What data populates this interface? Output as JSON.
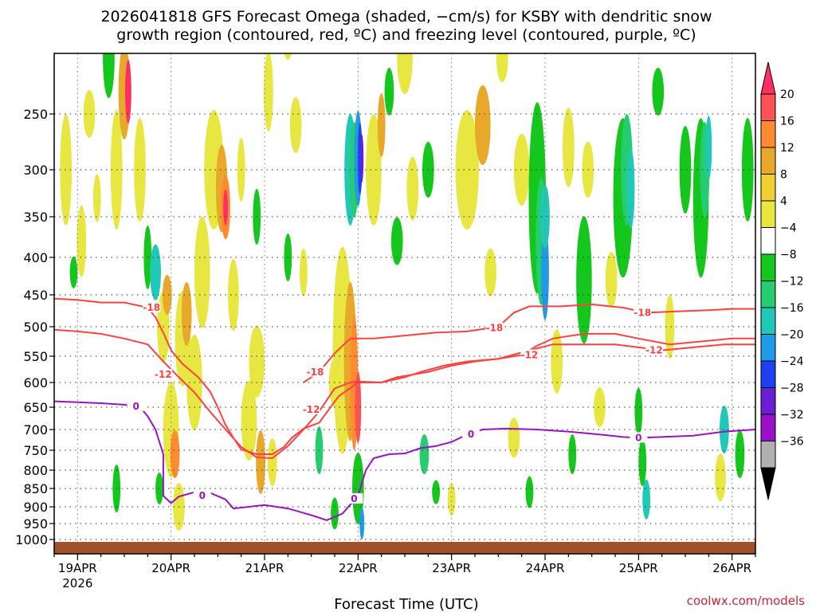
{
  "chart_data": {
    "type": "heatmap",
    "title_lines": [
      "2026041818 GFS Forecast Omega (shaded, −cm/s) for KSBY with dendritic snow",
      "growth region (contoured, red, ºC) and freezing level (contoured, purple, ºC)"
    ],
    "xlabel": "Forecast Time (UTC)",
    "credit": "coolwx.com/models",
    "x_ticks": [
      {
        "label": "19APR",
        "sub": "2026",
        "t": 0
      },
      {
        "label": "20APR",
        "sub": "",
        "t": 24
      },
      {
        "label": "21APR",
        "sub": "",
        "t": 48
      },
      {
        "label": "22APR",
        "sub": "",
        "t": 72
      },
      {
        "label": "23APR",
        "sub": "",
        "t": 96
      },
      {
        "label": "24APR",
        "sub": "",
        "t": 120
      },
      {
        "label": "25APR",
        "sub": "",
        "t": 144
      },
      {
        "label": "26APR",
        "sub": "",
        "t": 168
      }
    ],
    "x_range_hours": [
      -6,
      174
    ],
    "y_ticks": [
      "250",
      "300",
      "350",
      "400",
      "450",
      "500",
      "550",
      "600",
      "650",
      "700",
      "750",
      "800",
      "850",
      "900",
      "950",
      "1000"
    ],
    "y_range_hpa": [
      200,
      1015
    ],
    "colorbar": {
      "labels": [
        "20",
        "16",
        "12",
        "8",
        "4",
        "−4",
        "−8",
        "−12",
        "−16",
        "−20",
        "−24",
        "−28",
        "−32",
        "−36"
      ],
      "colors": [
        "#ff2e63",
        "#ff5252",
        "#ff8a30",
        "#e8a82a",
        "#f0d030",
        "#e8e640",
        "#ffffff",
        "#15c71c",
        "#26cd70",
        "#20c8b8",
        "#1e9ae8",
        "#1d40f0",
        "#6a1ed8",
        "#9a10c8",
        "#b0b0b0",
        "#000000"
      ]
    },
    "contours": {
      "dgz_minus18_upper": {
        "label": "-18",
        "color": "#ff4040",
        "points": [
          [
            -6,
            456
          ],
          [
            0,
            458
          ],
          [
            6,
            462
          ],
          [
            12,
            462
          ],
          [
            18,
            470
          ],
          [
            20,
            485
          ],
          [
            22,
            510
          ],
          [
            24,
            540
          ],
          [
            27,
            565
          ],
          [
            31,
            590
          ],
          [
            34,
            618
          ],
          [
            36,
            650
          ],
          [
            38,
            690
          ],
          [
            40,
            720
          ],
          [
            42,
            748
          ],
          [
            46,
            760
          ],
          [
            50,
            760
          ],
          [
            53,
            742
          ],
          [
            55,
            720
          ],
          [
            58,
            698
          ],
          [
            62,
            685
          ],
          [
            67,
            628
          ],
          [
            72,
            600
          ],
          [
            78,
            600
          ],
          [
            82,
            590
          ],
          [
            90,
            580
          ],
          [
            96,
            568
          ],
          [
            102,
            560
          ],
          [
            108,
            555
          ],
          [
            114,
            548
          ],
          [
            118,
            532
          ],
          [
            122,
            520
          ],
          [
            130,
            512
          ],
          [
            138,
            512
          ],
          [
            144,
            520
          ],
          [
            152,
            530
          ],
          [
            160,
            525
          ],
          [
            168,
            520
          ],
          [
            174,
            520
          ]
        ]
      },
      "dgz_minus12_lower": {
        "label": "-12",
        "color": "#ff4040",
        "points": [
          [
            -6,
            505
          ],
          [
            0,
            508
          ],
          [
            6,
            512
          ],
          [
            12,
            520
          ],
          [
            18,
            530
          ],
          [
            22,
            560
          ],
          [
            26,
            590
          ],
          [
            30,
            620
          ],
          [
            34,
            660
          ],
          [
            38,
            700
          ],
          [
            42,
            742
          ],
          [
            46,
            768
          ],
          [
            50,
            770
          ],
          [
            54,
            740
          ],
          [
            58,
            700
          ],
          [
            62,
            660
          ],
          [
            66,
            612
          ],
          [
            70,
            600
          ],
          [
            72,
            598
          ],
          [
            78,
            600
          ],
          [
            84,
            590
          ],
          [
            88,
            580
          ],
          [
            94,
            568
          ],
          [
            100,
            560
          ],
          [
            108,
            555
          ],
          [
            116,
            540
          ],
          [
            122,
            530
          ],
          [
            130,
            530
          ],
          [
            138,
            530
          ],
          [
            144,
            535
          ],
          [
            150,
            540
          ],
          [
            158,
            535
          ],
          [
            166,
            530
          ],
          [
            174,
            530
          ]
        ]
      },
      "dgz_minus18_cap": {
        "label": "-18",
        "color": "#ff4040",
        "points": [
          [
            58,
            600
          ],
          [
            62,
            580
          ],
          [
            66,
            545
          ],
          [
            70,
            520
          ],
          [
            76,
            520
          ],
          [
            84,
            515
          ],
          [
            92,
            510
          ],
          [
            100,
            508
          ],
          [
            108,
            500
          ],
          [
            112,
            478
          ],
          [
            116,
            468
          ],
          [
            124,
            468
          ],
          [
            132,
            465
          ],
          [
            140,
            470
          ],
          [
            146,
            478
          ],
          [
            154,
            476
          ],
          [
            162,
            474
          ],
          [
            168,
            472
          ],
          [
            174,
            472
          ]
        ]
      },
      "freezing_level": {
        "label": "0",
        "color": "#9c10c8",
        "points": [
          [
            -6,
            638
          ],
          [
            0,
            640
          ],
          [
            6,
            642
          ],
          [
            12,
            645
          ],
          [
            16,
            650
          ],
          [
            18,
            670
          ],
          [
            20,
            700
          ],
          [
            22,
            760
          ],
          [
            22,
            820
          ],
          [
            22,
            870
          ],
          [
            24,
            890
          ],
          [
            26,
            872
          ],
          [
            30,
            860
          ],
          [
            34,
            862
          ],
          [
            38,
            880
          ],
          [
            40,
            905
          ],
          [
            44,
            900
          ],
          [
            48,
            895
          ],
          [
            54,
            905
          ],
          [
            60,
            925
          ],
          [
            64,
            940
          ],
          [
            68,
            920
          ],
          [
            72,
            870
          ],
          [
            74,
            800
          ],
          [
            76,
            770
          ],
          [
            80,
            760
          ],
          [
            84,
            758
          ],
          [
            88,
            745
          ],
          [
            92,
            740
          ],
          [
            96,
            730
          ],
          [
            100,
            712
          ],
          [
            104,
            700
          ],
          [
            110,
            698
          ],
          [
            118,
            700
          ],
          [
            126,
            705
          ],
          [
            134,
            712
          ],
          [
            140,
            718
          ],
          [
            144,
            720
          ],
          [
            150,
            718
          ],
          [
            158,
            715
          ],
          [
            166,
            705
          ],
          [
            174,
            700
          ]
        ]
      }
    }
  }
}
